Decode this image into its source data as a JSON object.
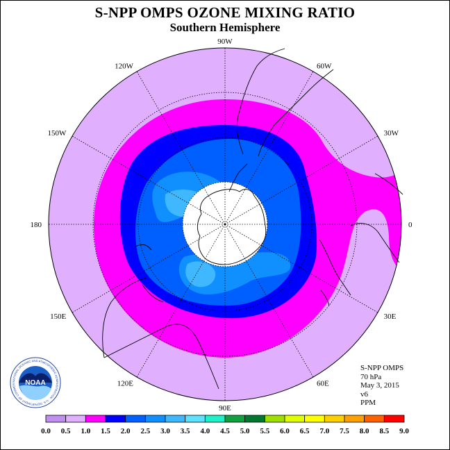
{
  "title": "S-NPP OMPS OZONE MIXING RATIO",
  "subtitle": "Southern Hemisphere",
  "map": {
    "projection": "polar stereographic, south pole",
    "longitude_labels": [
      {
        "text": "90W",
        "angle": -90
      },
      {
        "text": "60W",
        "angle": -60
      },
      {
        "text": "30W",
        "angle": -30
      },
      {
        "text": "0",
        "angle": 0
      },
      {
        "text": "30E",
        "angle": 30
      },
      {
        "text": "60E",
        "angle": 60
      },
      {
        "text": "90E",
        "angle": 90
      },
      {
        "text": "120E",
        "angle": 120
      },
      {
        "text": "150E",
        "angle": 150
      },
      {
        "text": "180",
        "angle": 180
      },
      {
        "text": "150W",
        "angle": 210
      },
      {
        "text": "120W",
        "angle": 240
      }
    ]
  },
  "info": {
    "instrument": "S-NPP OMPS",
    "level": "70 hPa",
    "date": "May 3, 2015",
    "version": "v6",
    "units": "PPM"
  },
  "logo": {
    "text": "NOAA",
    "ring_text": "NATIONAL OCEANIC AND ATMOSPHERIC ADMINISTRATION · U.S. DEPARTMENT OF COMMERCE"
  },
  "colorbar": {
    "ticks": [
      "0.0",
      "0.5",
      "1.0",
      "1.5",
      "2.0",
      "2.5",
      "3.0",
      "3.5",
      "4.0",
      "4.5",
      "5.0",
      "5.5",
      "6.0",
      "6.5",
      "7.0",
      "7.5",
      "8.0",
      "8.5",
      "9.0"
    ],
    "colors": [
      "#c090f0",
      "#e0b0ff",
      "#ff00ff",
      "#0000ff",
      "#0060ff",
      "#1090ff",
      "#40b8ff",
      "#60e0ff",
      "#20f0c8",
      "#10a040",
      "#007830",
      "#a0e000",
      "#e0ff00",
      "#ffff00",
      "#ffd000",
      "#ffa000",
      "#ff6000",
      "#ff0000",
      "#8b4a2a"
    ]
  },
  "chart_data": {
    "type": "heatmap",
    "levels": [
      0.0,
      0.5,
      1.0,
      1.5,
      2.0,
      2.5,
      3.0,
      3.5,
      4.0,
      4.5,
      5.0,
      5.5,
      6.0,
      6.5,
      7.0,
      7.5,
      8.0,
      8.5,
      9.0
    ],
    "units": "PPM"
  }
}
